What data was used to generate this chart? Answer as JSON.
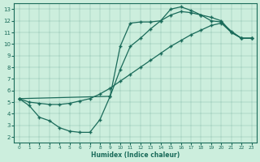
{
  "xlabel": "Humidex (Indice chaleur)",
  "bg_color": "#cceedd",
  "line_color": "#1a6b5a",
  "xlim": [
    -0.5,
    23.5
  ],
  "ylim": [
    1.5,
    13.5
  ],
  "xticks": [
    0,
    1,
    2,
    3,
    4,
    5,
    6,
    7,
    8,
    9,
    10,
    11,
    12,
    13,
    14,
    15,
    16,
    17,
    18,
    19,
    20,
    21,
    22,
    23
  ],
  "yticks": [
    2,
    3,
    4,
    5,
    6,
    7,
    8,
    9,
    10,
    11,
    12,
    13
  ],
  "line1_x": [
    0,
    1,
    2,
    3,
    4,
    5,
    6,
    7,
    8,
    9,
    10,
    11,
    12,
    13,
    14,
    15,
    16,
    17,
    18,
    19,
    20,
    21,
    22,
    23
  ],
  "line1_y": [
    5.3,
    4.7,
    3.7,
    3.4,
    2.8,
    2.5,
    2.4,
    2.4,
    3.5,
    5.5,
    9.8,
    11.8,
    11.9,
    11.9,
    12.0,
    13.0,
    13.2,
    12.9,
    12.5,
    12.0,
    11.9,
    11.1,
    10.5,
    10.5
  ],
  "line2_x": [
    0,
    1,
    2,
    3,
    4,
    5,
    6,
    7,
    8,
    9,
    10,
    11,
    12,
    13,
    14,
    15,
    16,
    17,
    18,
    19,
    20,
    21,
    22,
    23
  ],
  "line2_y": [
    5.3,
    5.0,
    4.9,
    4.8,
    4.8,
    4.9,
    5.1,
    5.3,
    5.7,
    6.2,
    6.8,
    7.4,
    8.0,
    8.6,
    9.2,
    9.8,
    10.3,
    10.8,
    11.2,
    11.6,
    11.8,
    11.0,
    10.5,
    10.5
  ],
  "line3_x": [
    0,
    9,
    10,
    11,
    12,
    13,
    14,
    15,
    16,
    17,
    18,
    19,
    20,
    21,
    22,
    23
  ],
  "line3_y": [
    5.3,
    5.5,
    7.8,
    9.8,
    10.5,
    11.3,
    12.0,
    12.5,
    12.8,
    12.7,
    12.5,
    12.3,
    12.0,
    11.0,
    10.5,
    10.5
  ]
}
